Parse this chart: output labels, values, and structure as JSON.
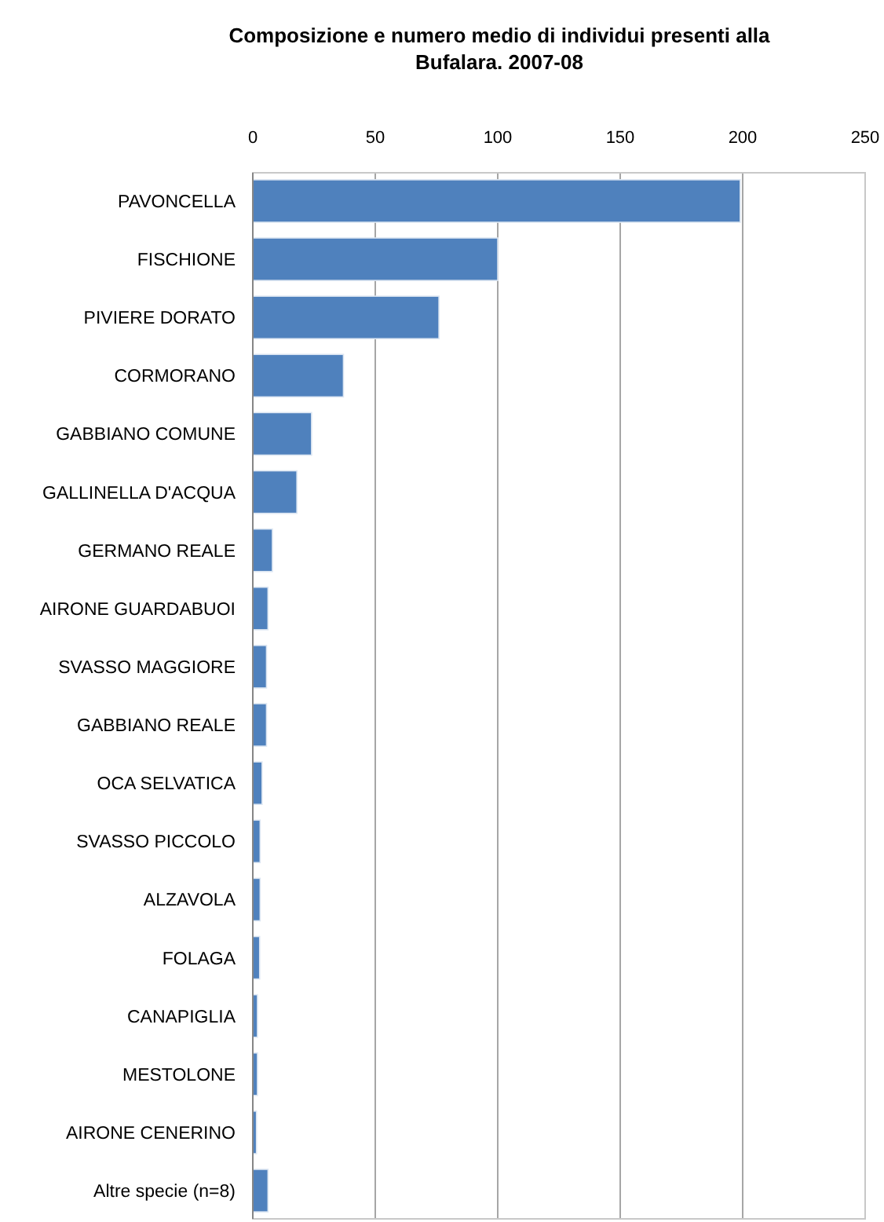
{
  "chart_data": {
    "type": "bar",
    "orientation": "horizontal",
    "title": "Composizione e numero medio di individui presenti alla Bufalara. 2007-08",
    "categories": [
      "PAVONCELLA",
      "FISCHIONE",
      "PIVIERE DORATO",
      "CORMORANO",
      "GABBIANO COMUNE",
      "GALLINELLA D'ACQUA",
      "GERMANO REALE",
      "AIRONE GUARDABUOI",
      "SVASSO MAGGIORE",
      "GABBIANO REALE",
      "OCA SELVATICA",
      "SVASSO PICCOLO",
      "ALZAVOLA",
      "FOLAGA",
      "CANAPIGLIA",
      "MESTOLONE",
      "AIRONE CENERINO",
      "Altre specie (n=8)"
    ],
    "values": [
      199,
      100,
      76,
      37,
      24,
      18,
      8,
      6.2,
      5.6,
      5.6,
      3.8,
      3,
      3,
      2.8,
      1.9,
      1.9,
      1.5,
      6.2
    ],
    "color": "#4f81bd",
    "xlim": [
      0,
      250
    ],
    "xticks": [
      0,
      50,
      100,
      150,
      200,
      250
    ],
    "grid": "x"
  }
}
